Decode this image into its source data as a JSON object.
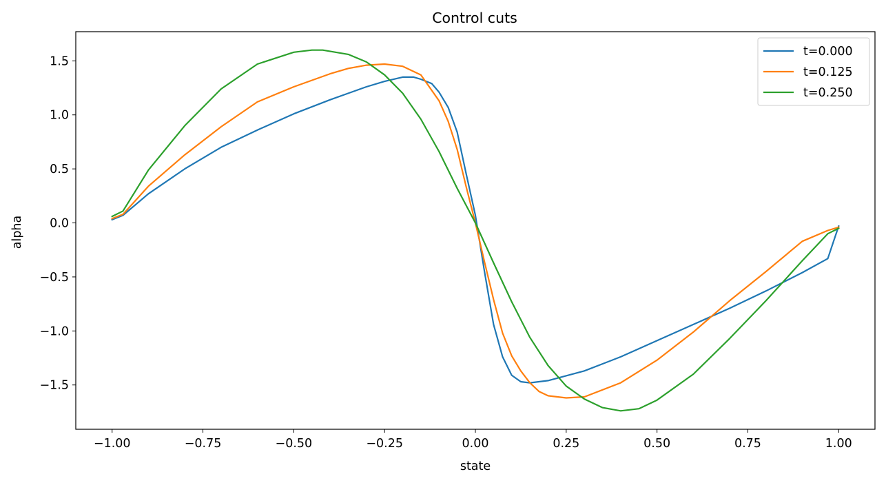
{
  "chart_data": {
    "type": "line",
    "title": "Control cuts",
    "xlabel": "state",
    "ylabel": "alpha",
    "xlim": [
      -1.1,
      1.1
    ],
    "ylim": [
      -1.91,
      1.77
    ],
    "xticks": [
      -1.0,
      -0.75,
      -0.5,
      -0.25,
      0.0,
      0.25,
      0.5,
      0.75,
      1.0
    ],
    "xtick_labels": [
      "−1.00",
      "−0.75",
      "−0.50",
      "−0.25",
      "0.00",
      "0.25",
      "0.50",
      "0.75",
      "1.00"
    ],
    "yticks": [
      1.5,
      1.0,
      0.5,
      0.0,
      -0.5,
      -1.0,
      -1.5
    ],
    "ytick_labels": [
      "1.5",
      "1.0",
      "0.5",
      "0.0",
      "−0.5",
      "−1.0",
      "−1.5"
    ],
    "grid": false,
    "legend_position": "top-right",
    "series": [
      {
        "name": "t=0.000",
        "color": "#1f77b4",
        "x": [
          -1.0,
          -0.97,
          -0.9,
          -0.8,
          -0.7,
          -0.6,
          -0.5,
          -0.4,
          -0.3,
          -0.25,
          -0.2,
          -0.17,
          -0.15,
          -0.12,
          -0.1,
          -0.075,
          -0.05,
          -0.025,
          0.0,
          0.025,
          0.05,
          0.075,
          0.1,
          0.125,
          0.15,
          0.2,
          0.3,
          0.4,
          0.5,
          0.6,
          0.7,
          0.8,
          0.9,
          0.97,
          1.0
        ],
        "values": [
          0.03,
          0.07,
          0.27,
          0.5,
          0.7,
          0.86,
          1.01,
          1.14,
          1.26,
          1.31,
          1.35,
          1.35,
          1.33,
          1.29,
          1.21,
          1.07,
          0.84,
          0.45,
          0.07,
          -0.45,
          -0.94,
          -1.24,
          -1.41,
          -1.47,
          -1.48,
          -1.46,
          -1.37,
          -1.24,
          -1.09,
          -0.94,
          -0.79,
          -0.63,
          -0.46,
          -0.33,
          -0.03
        ]
      },
      {
        "name": "t=0.125",
        "color": "#ff7f0e",
        "x": [
          -1.0,
          -0.97,
          -0.9,
          -0.8,
          -0.7,
          -0.6,
          -0.5,
          -0.4,
          -0.35,
          -0.3,
          -0.25,
          -0.2,
          -0.15,
          -0.1,
          -0.075,
          -0.05,
          -0.025,
          0.0,
          0.025,
          0.05,
          0.075,
          0.1,
          0.125,
          0.15,
          0.175,
          0.2,
          0.25,
          0.3,
          0.4,
          0.5,
          0.6,
          0.7,
          0.8,
          0.9,
          0.97,
          1.0
        ],
        "values": [
          0.04,
          0.08,
          0.34,
          0.63,
          0.89,
          1.12,
          1.26,
          1.38,
          1.43,
          1.46,
          1.47,
          1.45,
          1.37,
          1.13,
          0.94,
          0.68,
          0.33,
          0.0,
          -0.36,
          -0.71,
          -1.02,
          -1.23,
          -1.37,
          -1.48,
          -1.56,
          -1.6,
          -1.62,
          -1.61,
          -1.48,
          -1.27,
          -1.01,
          -0.72,
          -0.45,
          -0.17,
          -0.07,
          -0.04
        ]
      },
      {
        "name": "t=0.250",
        "color": "#2ca02c",
        "x": [
          -1.0,
          -0.97,
          -0.9,
          -0.8,
          -0.7,
          -0.6,
          -0.5,
          -0.45,
          -0.42,
          -0.35,
          -0.3,
          -0.25,
          -0.2,
          -0.15,
          -0.1,
          -0.05,
          0.0,
          0.05,
          0.1,
          0.15,
          0.2,
          0.25,
          0.3,
          0.35,
          0.4,
          0.45,
          0.5,
          0.6,
          0.7,
          0.8,
          0.9,
          0.97,
          1.0
        ],
        "values": [
          0.06,
          0.11,
          0.49,
          0.9,
          1.24,
          1.47,
          1.58,
          1.6,
          1.6,
          1.56,
          1.49,
          1.37,
          1.2,
          0.96,
          0.66,
          0.32,
          0.0,
          -0.37,
          -0.73,
          -1.06,
          -1.32,
          -1.51,
          -1.63,
          -1.71,
          -1.74,
          -1.72,
          -1.64,
          -1.4,
          -1.07,
          -0.72,
          -0.35,
          -0.1,
          -0.05
        ]
      }
    ]
  }
}
